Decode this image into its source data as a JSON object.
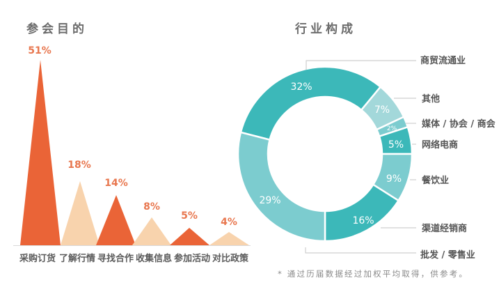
{
  "chart_data": [
    {
      "type": "bar",
      "subtype": "triangle-bar",
      "title": "参会目的",
      "categories": [
        "采购订货",
        "了解行情",
        "寻找合作",
        "收集信息",
        "参加活动",
        "对比政策"
      ],
      "values": [
        51,
        18,
        14,
        8,
        5,
        4
      ],
      "value_labels": [
        "51%",
        "18%",
        "14%",
        "8%",
        "5%",
        "4%"
      ],
      "colors": [
        "#ea6437",
        "#f8d3ad",
        "#ea6437",
        "#f8d3ad",
        "#ea6437",
        "#f8d3ad"
      ],
      "xlabel": "",
      "ylabel": "",
      "grid": false,
      "unit": "%"
    },
    {
      "type": "pie",
      "subtype": "donut",
      "title": "行业构成",
      "categories": [
        "商贸流通业",
        "其他",
        "媒体 / 协会 / 商会",
        "网络电商",
        "餐饮业",
        "渠道经销商",
        "批发 / 零售业"
      ],
      "values": [
        32,
        7,
        2,
        5,
        9,
        16,
        29
      ],
      "value_labels": [
        "32%",
        "7%",
        "2%",
        "5%",
        "9%",
        "16%",
        "29%"
      ],
      "colors": [
        "#3cb8b9",
        "#a3d8da",
        "#7ccccf",
        "#3cb8b9",
        "#7ccccf",
        "#3cb8b9",
        "#7ccccf"
      ],
      "legend_position": "right, leader lines",
      "unit": "%"
    }
  ],
  "titles": {
    "left": "参会目的",
    "right": "行业构成"
  },
  "bars": {
    "labels": [
      "51%",
      "18%",
      "14%",
      "8%",
      "5%",
      "4%"
    ],
    "categories": [
      "采购订货",
      "了解行情",
      "寻找合作",
      "收集信息",
      "参加活动",
      "对比政策"
    ]
  },
  "donut": {
    "pct_labels": [
      "32%",
      "7%",
      "2%",
      "5%",
      "9%",
      "16%",
      "29%"
    ],
    "legend": [
      "商贸流通业",
      "其他",
      "媒体 / 协会 / 商会",
      "网络电商",
      "餐饮业",
      "渠道经销商",
      "批发 / 零售业"
    ]
  },
  "footnote": "* 通过历届数据经过加权平均取得，供参考。"
}
